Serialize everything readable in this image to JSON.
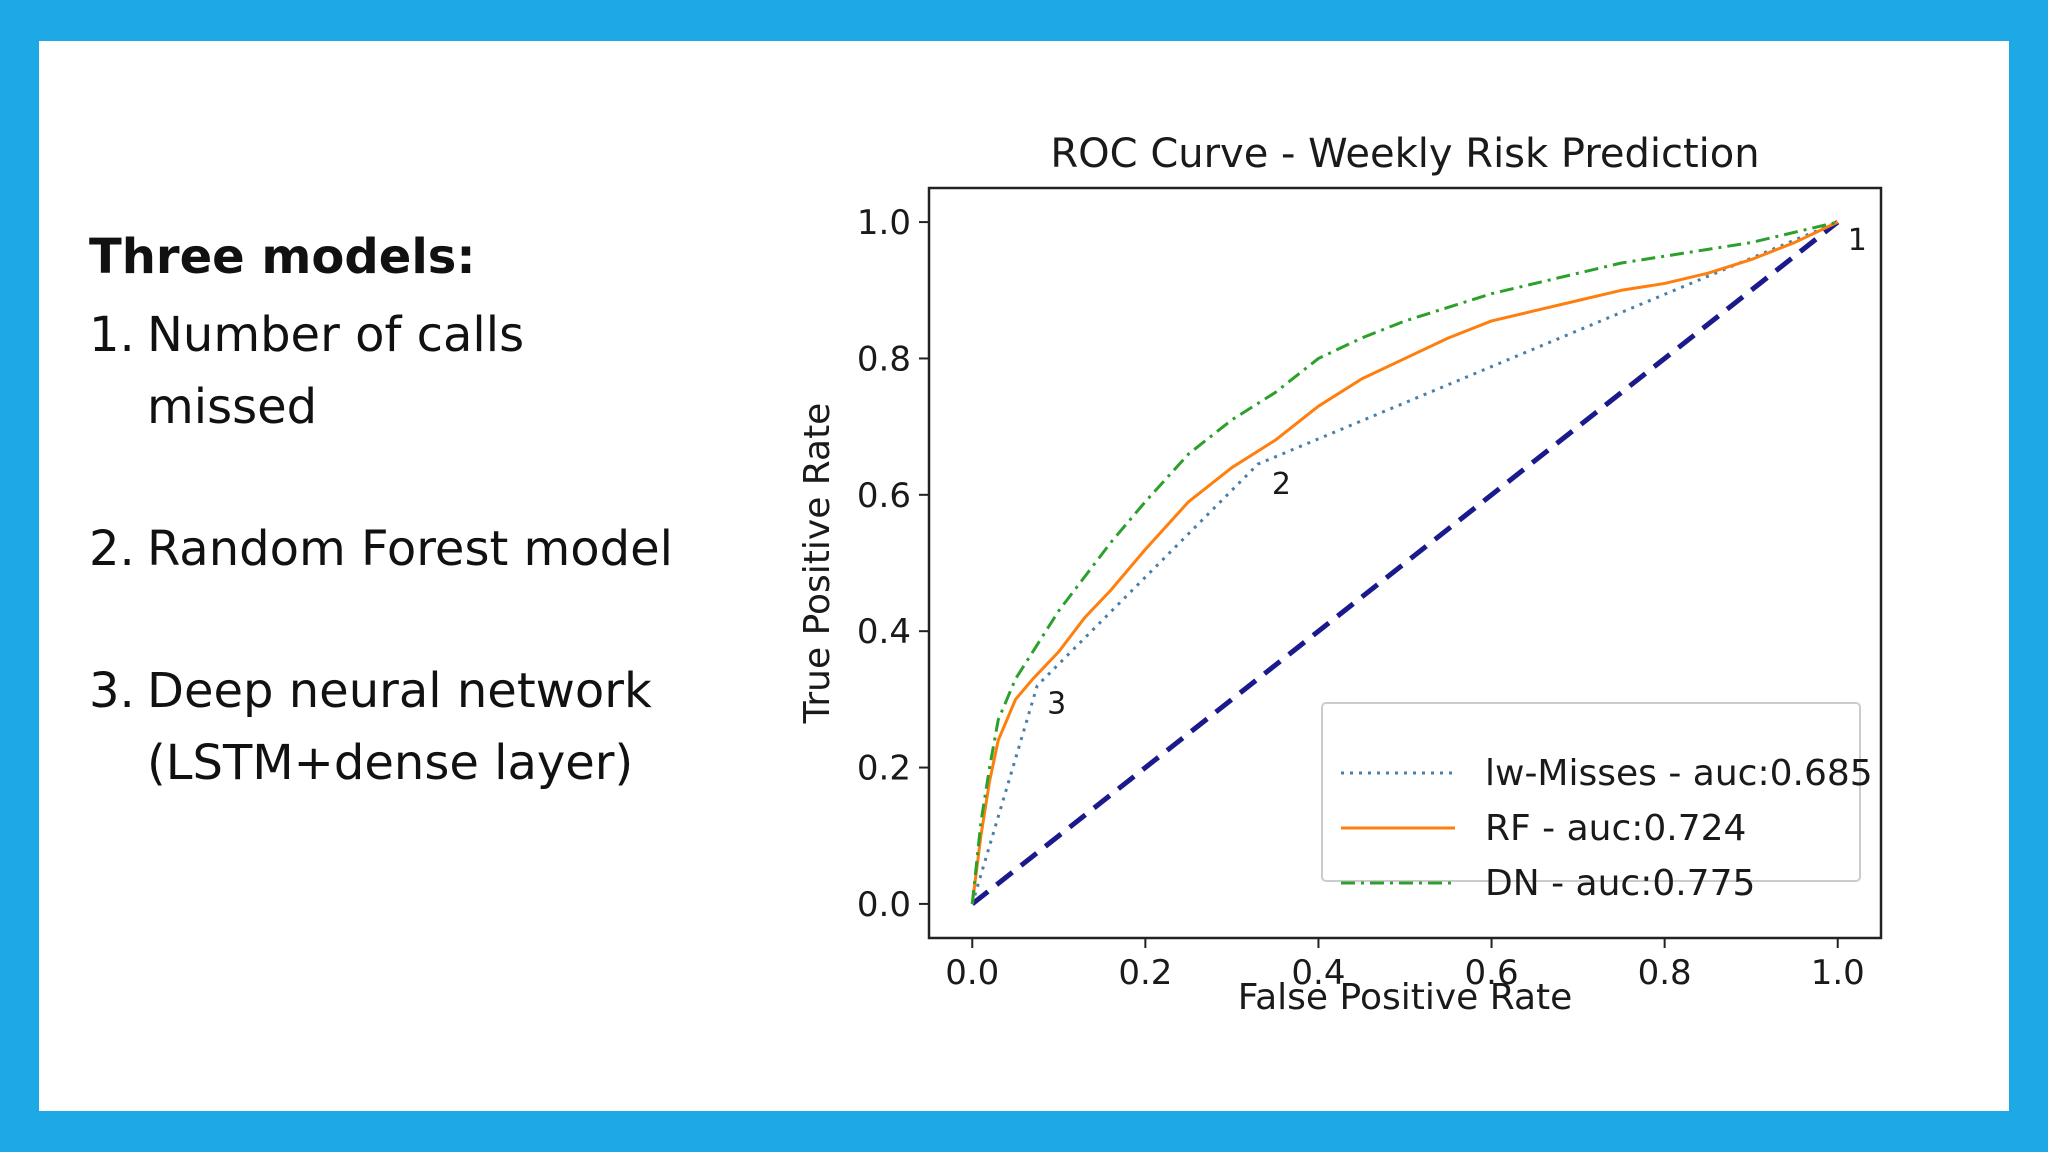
{
  "slide": {
    "heading": "Three models:",
    "items": [
      {
        "num": "1.",
        "lines": [
          "Number of calls",
          "missed"
        ]
      },
      {
        "num": "2.",
        "lines": [
          "Random Forest model"
        ]
      },
      {
        "num": "3.",
        "lines": [
          "Deep neural network",
          "(LSTM+dense layer)"
        ]
      }
    ]
  },
  "colors": {
    "frame": "#1ea9e6",
    "baseline": "#1a1a8c",
    "lw_misses": "#4a7fa8",
    "rf": "#ff7f0e",
    "dn": "#2ca02c"
  },
  "chart_data": {
    "type": "line",
    "title": "ROC Curve - Weekly Risk Prediction",
    "xlabel": "False Positive Rate",
    "ylabel": "True Positive Rate",
    "xlim": [
      -0.05,
      1.05
    ],
    "ylim": [
      -0.05,
      1.05
    ],
    "xticks": [
      "0.0",
      "0.2",
      "0.4",
      "0.6",
      "0.8",
      "1.0"
    ],
    "yticks": [
      "0.0",
      "0.2",
      "0.4",
      "0.6",
      "0.8",
      "1.0"
    ],
    "grid": false,
    "legend_position": "lower-right",
    "baseline": {
      "x": [
        0,
        1
      ],
      "y": [
        0,
        1
      ]
    },
    "annotations": [
      {
        "text": "1",
        "x": 1.0,
        "y": 1.0
      },
      {
        "text": "2",
        "x": 0.33,
        "y": 0.645
      },
      {
        "text": "3",
        "x": 0.075,
        "y": 0.32
      }
    ],
    "series": [
      {
        "name": "lw-Misses - auc:0.685",
        "style": "dotted",
        "x": [
          0,
          0.075,
          0.33,
          1.0
        ],
        "y": [
          0,
          0.32,
          0.645,
          1.0
        ]
      },
      {
        "name": "RF - auc:0.724",
        "style": "solid",
        "x": [
          0,
          0.01,
          0.02,
          0.03,
          0.05,
          0.07,
          0.1,
          0.13,
          0.16,
          0.2,
          0.25,
          0.3,
          0.35,
          0.4,
          0.45,
          0.5,
          0.55,
          0.6,
          0.65,
          0.7,
          0.75,
          0.8,
          0.85,
          0.9,
          0.95,
          1.0
        ],
        "y": [
          0,
          0.1,
          0.18,
          0.24,
          0.3,
          0.33,
          0.37,
          0.42,
          0.46,
          0.52,
          0.59,
          0.64,
          0.68,
          0.73,
          0.77,
          0.8,
          0.83,
          0.855,
          0.87,
          0.885,
          0.9,
          0.91,
          0.925,
          0.945,
          0.97,
          1.0
        ]
      },
      {
        "name": "DN - auc:0.775",
        "style": "dashdot",
        "x": [
          0,
          0.01,
          0.02,
          0.03,
          0.05,
          0.07,
          0.1,
          0.13,
          0.16,
          0.2,
          0.25,
          0.3,
          0.35,
          0.4,
          0.45,
          0.5,
          0.55,
          0.6,
          0.65,
          0.7,
          0.75,
          0.8,
          0.85,
          0.9,
          0.95,
          1.0
        ],
        "y": [
          0,
          0.12,
          0.2,
          0.27,
          0.33,
          0.37,
          0.43,
          0.48,
          0.53,
          0.59,
          0.66,
          0.71,
          0.75,
          0.8,
          0.83,
          0.855,
          0.875,
          0.895,
          0.91,
          0.925,
          0.94,
          0.95,
          0.96,
          0.97,
          0.985,
          1.0
        ]
      }
    ]
  }
}
